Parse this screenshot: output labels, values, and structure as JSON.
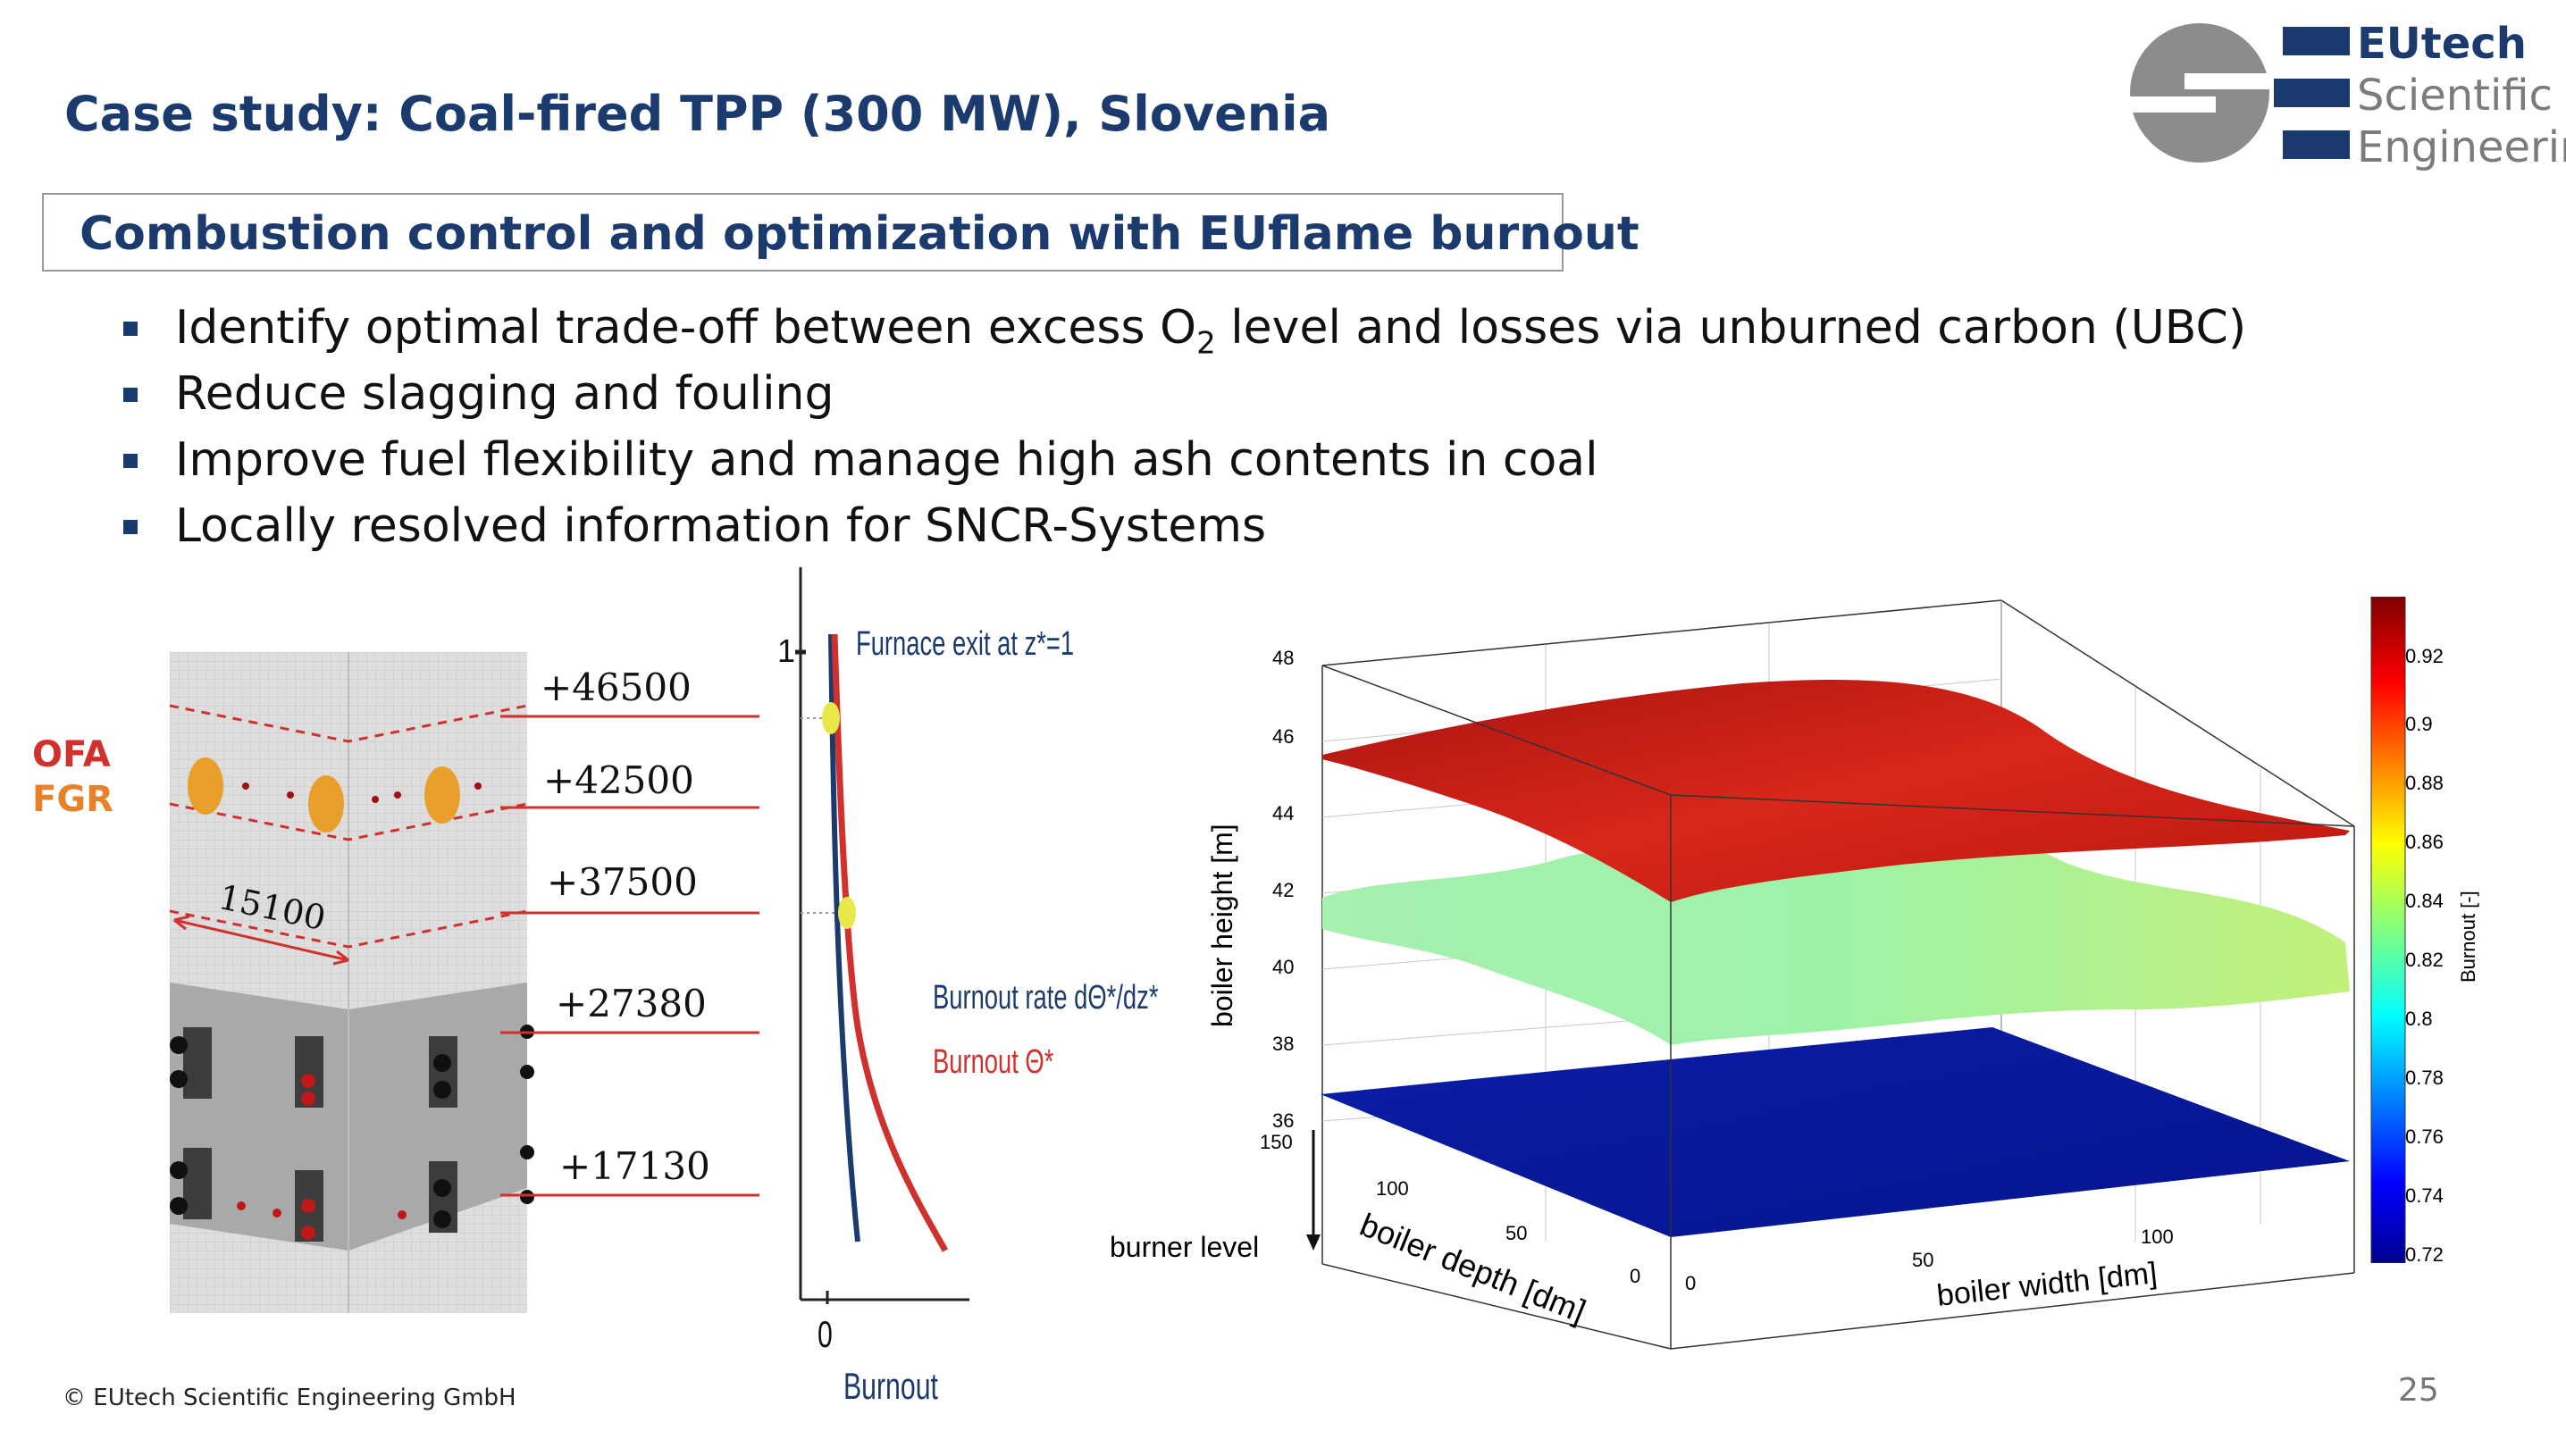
{
  "slide": {
    "title": "Case study: Coal-fired TPP (300 MW), Slovenia",
    "subtitle": "Combustion control and optimization with EUflame burnout",
    "bullets": [
      {
        "pre": "Identify optimal trade-off between excess O",
        "sub": "2",
        "post": " level and losses via unburned carbon (UBC)"
      },
      {
        "pre": "Reduce slagging and fouling",
        "sub": "",
        "post": ""
      },
      {
        "pre": "Improve fuel flexibility and manage high ash contents in coal",
        "sub": "",
        "post": ""
      },
      {
        "pre": "Locally resolved information for SNCR-Systems",
        "sub": "",
        "post": ""
      }
    ],
    "footer": "©  EUtech Scientific Engineering GmbH",
    "page_number": "25"
  },
  "logo": {
    "lines": [
      "EUtech",
      "Scientific",
      "Engineering"
    ],
    "colors": {
      "navy": "#1b3a6e",
      "gray": "#8c8c8c"
    }
  },
  "furnace": {
    "side_labels": {
      "ofa": "OFA",
      "fgr": "FGR"
    },
    "side_colors": {
      "ofa": "#d0312d",
      "fgr": "#e8822a"
    },
    "dimension": "15100",
    "levels": [
      "+46500",
      "+42500",
      "+37500",
      "+27380",
      "+17130"
    ]
  },
  "burnout_profile": {
    "exit_label": "Furnace exit at z*=1",
    "y_tick_1": "1",
    "x_tick_0": "0",
    "x_label": "Burnout",
    "legend_rate": "Burnout rate dΘ*/dz*",
    "legend_burnout": "Burnout Θ*",
    "colors": {
      "rate": "#1b3a6e",
      "burnout": "#d0312d",
      "marker": "#e8e84a"
    }
  },
  "surface_plot": {
    "z_label": "boiler height [m]",
    "z_ticks": [
      "36",
      "38",
      "40",
      "42",
      "44",
      "46",
      "48"
    ],
    "depth_label": "boiler depth [dm]",
    "depth_ticks": [
      "0",
      "50",
      "100",
      "150"
    ],
    "width_label": "boiler width [dm]",
    "width_ticks": [
      "0",
      "50",
      "100"
    ],
    "burner_label": "burner level",
    "colorbar_label": "Burnout [-]",
    "colorbar_ticks": [
      "0.72",
      "0.74",
      "0.76",
      "0.78",
      "0.8",
      "0.82",
      "0.84",
      "0.86",
      "0.88",
      "0.9",
      "0.92"
    ],
    "layers": [
      {
        "level": "top",
        "color": "#c8201a"
      },
      {
        "level": "middle",
        "color": "#9ef29a"
      },
      {
        "level": "bottom",
        "color": "#0a1aa8"
      }
    ]
  }
}
